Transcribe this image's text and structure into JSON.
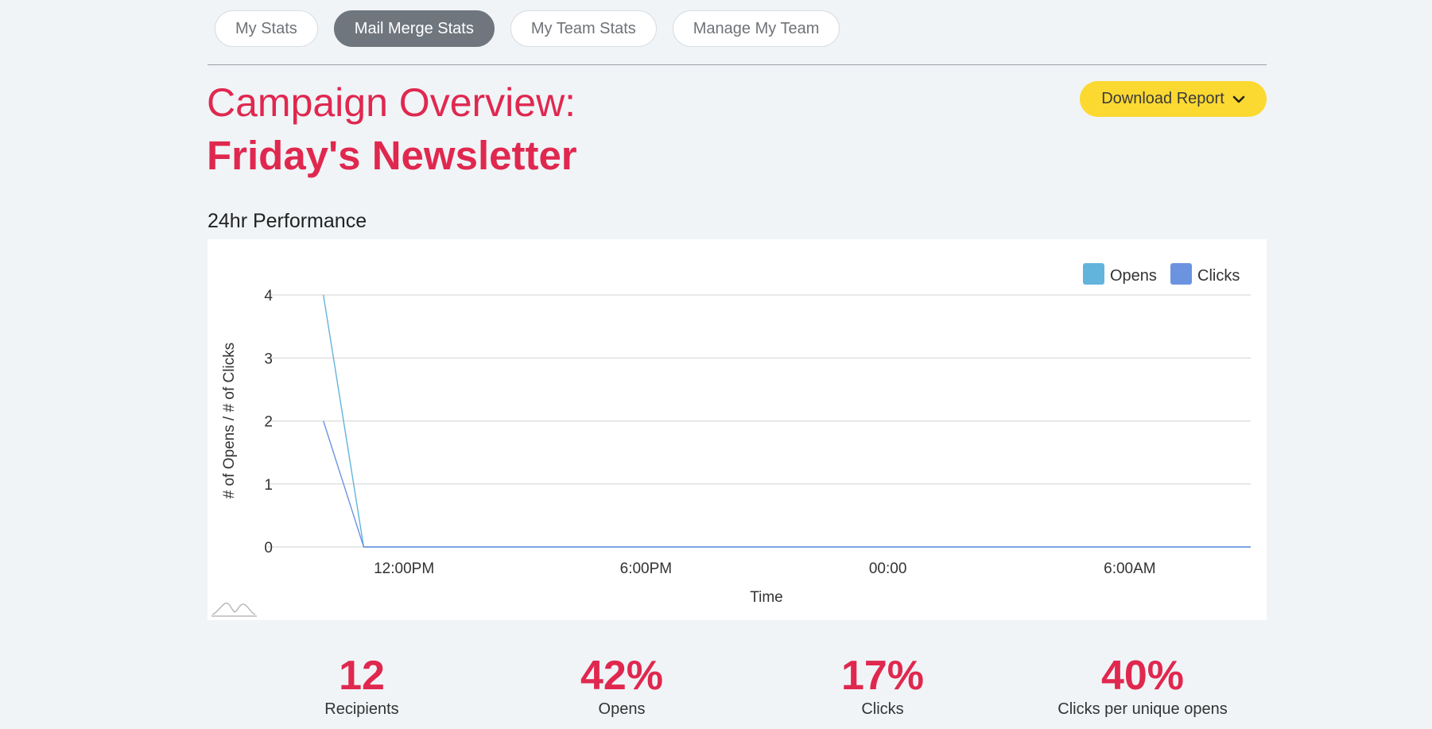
{
  "tabs": [
    {
      "label": "My Stats",
      "active": false
    },
    {
      "label": "Mail Merge Stats",
      "active": true
    },
    {
      "label": "My Team Stats",
      "active": false
    },
    {
      "label": "Manage My Team",
      "active": false
    }
  ],
  "header": {
    "title_prefix": "Campaign Overview:",
    "campaign_name": "Friday's Newsletter",
    "download_label": "Download Report"
  },
  "performance": {
    "title": "24hr Performance"
  },
  "chart_data": {
    "type": "line",
    "title": "",
    "xlabel": "Time",
    "ylabel": "# of Opens / # of Clicks",
    "ylim": [
      0,
      4
    ],
    "yticks": [
      0,
      1,
      2,
      3,
      4
    ],
    "xticks": [
      "12:00PM",
      "6:00PM",
      "00:00",
      "6:00AM"
    ],
    "grid": true,
    "legend_position": "top-right",
    "series": [
      {
        "name": "Opens",
        "color": "#62b4dc",
        "points": [
          [
            "10:00AM",
            4
          ],
          [
            "11:00AM",
            0
          ],
          [
            "9:00AM (+1d)",
            0
          ]
        ]
      },
      {
        "name": "Clicks",
        "color": "#6c93e0",
        "points": [
          [
            "10:00AM",
            2
          ],
          [
            "11:00AM",
            0
          ],
          [
            "9:00AM (+1d)",
            0
          ]
        ]
      }
    ]
  },
  "stats": [
    {
      "value": "12",
      "label": "Recipients"
    },
    {
      "value": "42%",
      "label": "Opens"
    },
    {
      "value": "17%",
      "label": "Clicks"
    },
    {
      "value": "40%",
      "label": "Clicks per unique opens"
    }
  ]
}
